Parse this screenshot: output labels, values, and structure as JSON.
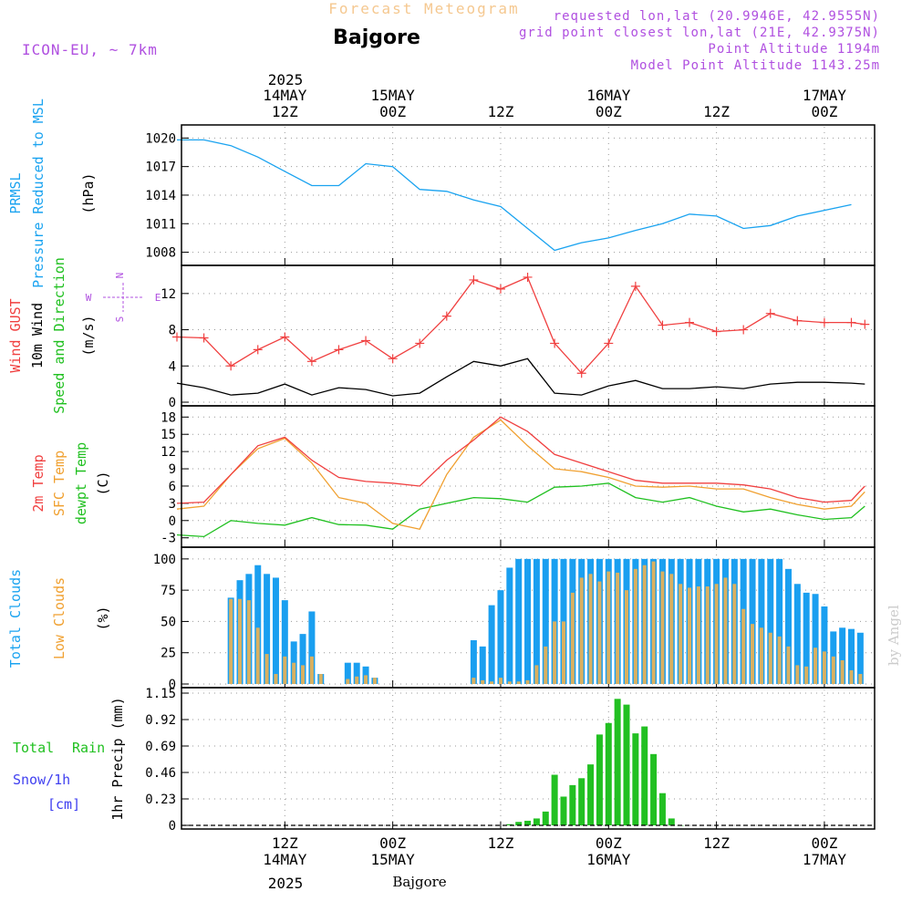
{
  "header": {
    "product": "Forecast Meteogram",
    "location": "Bajgore",
    "model": "ICON-EU, ~ 7km",
    "requested": "requested lon,lat (20.9946E, 42.9555N)",
    "gridpoint": "grid point closest lon,lat (21E, 42.9375N)",
    "point_alt": "Point Altitude 1194m",
    "model_alt": "Model Point Altitude 1143.25m",
    "footer_location": "Bajgore",
    "watermark": "by Angel",
    "year": "2025"
  },
  "time_axis": {
    "top_dates": [
      "14MAY",
      "15MAY",
      "16MAY",
      "17MAY"
    ],
    "top_hours": [
      "12Z",
      "00Z",
      "12Z",
      "00Z",
      "12Z",
      "00Z"
    ],
    "bottom_hours": [
      "12Z",
      "00Z",
      "12Z",
      "00Z",
      "12Z",
      "00Z"
    ],
    "bottom_dates": [
      "14MAY",
      "15MAY",
      "16MAY",
      "17MAY"
    ]
  },
  "panel_labels": {
    "pressure": [
      "PRMSL",
      "Pressure Reduced to MSL",
      "(hPa)"
    ],
    "wind": [
      "Wind GUST",
      "10m Wind",
      "Speed and Direction",
      "(m/s)"
    ],
    "compass": [
      "N",
      "S",
      "W",
      "E"
    ],
    "temp": [
      "2m Temp",
      "SFC Temp",
      "dewpt Temp",
      "(C)"
    ],
    "clouds": [
      "Total Clouds",
      "Low Clouds",
      "(%)"
    ],
    "precip": [
      "Total",
      "Rain",
      "Snow/1h",
      "[cm]",
      "1hr Precip (mm)"
    ]
  },
  "colors": {
    "pressure": "#1aa3f0",
    "gust": "#f04040",
    "wind": "#000000",
    "t2m": "#f04040",
    "sfc": "#f0a030",
    "dewpt": "#20c020",
    "total_clouds": "#1a9ff0",
    "low_clouds": "#d9b060",
    "rain": "#22c022",
    "header_orange": "#f5c890",
    "header_purple": "#b050e0",
    "label_cyan": "#1aa3f0",
    "label_green": "#20c020",
    "label_red": "#f04040",
    "label_orange": "#f0a030",
    "label_blue": "#4040f0"
  },
  "chart_data": [
    {
      "type": "line",
      "title": "PRMSL Pressure Reduced to MSL",
      "ylabel": "(hPa)",
      "x_hours_from_14MAY_00Z": [
        0,
        3,
        6,
        9,
        12,
        15,
        18,
        21,
        24,
        27,
        30,
        33,
        36,
        39,
        42,
        45,
        48,
        51,
        54,
        57,
        60,
        63,
        66,
        69,
        75
      ],
      "series": [
        {
          "name": "PRMSL",
          "values": [
            1019.8,
            1019.8,
            1019.2,
            1018.0,
            1016.5,
            1015.0,
            1015.0,
            1017.3,
            1017.0,
            1014.6,
            1014.4,
            1013.5,
            1012.8,
            1010.5,
            1008.2,
            1009.0,
            1009.5,
            1010.3,
            1011.0,
            1012.0,
            1011.8,
            1010.5,
            1010.8,
            1011.8,
            1013.0
          ]
        }
      ],
      "yticks": [
        1008,
        1011,
        1014,
        1017,
        1020
      ],
      "ylim": [
        1007,
        1020.8
      ]
    },
    {
      "type": "line",
      "title": "Wind GUST / 10m Wind Speed and Direction",
      "ylabel": "(m/s)",
      "x_hours_from_14MAY_00Z": [
        0,
        3,
        6,
        9,
        12,
        15,
        18,
        21,
        24,
        27,
        30,
        33,
        36,
        39,
        42,
        45,
        48,
        51,
        54,
        57,
        60,
        63,
        66,
        69,
        72,
        75,
        76.5
      ],
      "series": [
        {
          "name": "Wind GUST",
          "values": [
            7.2,
            7.1,
            4.0,
            5.8,
            7.2,
            4.5,
            5.8,
            6.8,
            4.8,
            6.5,
            9.5,
            13.5,
            12.5,
            13.8,
            6.5,
            3.2,
            6.5,
            12.8,
            8.5,
            8.8,
            7.8,
            8.0,
            9.8,
            9.0,
            8.8,
            8.8,
            8.6
          ]
        },
        {
          "name": "10m Wind",
          "values": [
            2.1,
            1.6,
            0.8,
            1.0,
            2.0,
            0.8,
            1.6,
            1.4,
            0.7,
            1.0,
            2.8,
            4.5,
            4.0,
            4.8,
            1.0,
            0.8,
            1.8,
            2.4,
            1.5,
            1.5,
            1.7,
            1.5,
            2.0,
            2.2,
            2.2,
            2.1,
            2.0
          ]
        }
      ],
      "yticks": [
        0,
        4,
        8,
        12
      ],
      "ylim": [
        0,
        14.5
      ]
    },
    {
      "type": "line",
      "title": "2m Temp / SFC Temp / dewpt Temp",
      "ylabel": "(C)",
      "x_hours_from_14MAY_00Z": [
        0,
        3,
        6,
        9,
        12,
        15,
        18,
        21,
        24,
        27,
        30,
        33,
        36,
        39,
        42,
        45,
        48,
        51,
        54,
        57,
        60,
        63,
        66,
        69,
        72,
        75,
        76.5
      ],
      "series": [
        {
          "name": "2m Temp",
          "values": [
            3.0,
            3.2,
            8.0,
            13.0,
            14.5,
            10.5,
            7.5,
            6.8,
            6.5,
            6.0,
            10.5,
            14.0,
            18.0,
            15.5,
            11.5,
            10.0,
            8.5,
            7.0,
            6.5,
            6.5,
            6.5,
            6.2,
            5.5,
            4.0,
            3.2,
            3.5,
            6.0
          ]
        },
        {
          "name": "SFC Temp",
          "values": [
            2.0,
            2.5,
            8.0,
            12.5,
            14.3,
            10.0,
            4.0,
            3.0,
            -0.5,
            -1.5,
            8.0,
            14.5,
            17.5,
            13.0,
            9.0,
            8.5,
            7.5,
            6.0,
            5.8,
            6.0,
            5.5,
            5.5,
            4.0,
            2.8,
            2.0,
            2.5,
            5.0
          ]
        },
        {
          "name": "dewpt Temp",
          "values": [
            -2.5,
            -2.8,
            0.0,
            -0.5,
            -0.8,
            0.5,
            -0.7,
            -0.8,
            -1.5,
            2.0,
            3.0,
            4.0,
            3.8,
            3.2,
            5.8,
            6.0,
            6.5,
            4.0,
            3.2,
            4.0,
            2.5,
            1.5,
            2.0,
            1.0,
            0.2,
            0.5,
            2.5
          ]
        }
      ],
      "yticks": [
        -3,
        0,
        3,
        6,
        9,
        12,
        15,
        18
      ],
      "ylim": [
        -4,
        19
      ]
    },
    {
      "type": "bar",
      "title": "Total Clouds / Low Clouds",
      "ylabel": "(%)",
      "x_hours_from_14MAY_00Z": [
        6,
        7,
        8,
        9,
        10,
        11,
        12,
        13,
        14,
        15,
        16,
        19,
        20,
        21,
        22,
        33,
        34,
        35,
        36,
        37,
        38,
        39,
        40,
        41,
        42,
        43,
        44,
        45,
        46,
        47,
        48,
        49,
        50,
        51,
        52,
        53,
        54,
        55,
        56,
        57,
        58,
        59,
        60,
        61,
        62,
        63,
        64,
        65,
        66,
        67,
        68,
        69,
        70,
        71,
        72,
        73,
        74,
        75,
        76
      ],
      "series": [
        {
          "name": "Total Clouds",
          "values": [
            69,
            83,
            88,
            95,
            88,
            85,
            67,
            34,
            40,
            58,
            8,
            17,
            17,
            14,
            5,
            35,
            30,
            63,
            75,
            93,
            100,
            100,
            100,
            100,
            100,
            100,
            100,
            100,
            100,
            100,
            100,
            100,
            100,
            100,
            100,
            100,
            100,
            100,
            100,
            100,
            100,
            100,
            100,
            100,
            100,
            100,
            100,
            100,
            100,
            100,
            92,
            80,
            73,
            72,
            62,
            42,
            45,
            44,
            41
          ]
        },
        {
          "name": "Low Clouds",
          "values": [
            68,
            68,
            67,
            45,
            24,
            8,
            22,
            17,
            15,
            22,
            8,
            4,
            6,
            7,
            5,
            5,
            3,
            2,
            5,
            2,
            2,
            3,
            15,
            30,
            50,
            50,
            73,
            85,
            88,
            82,
            90,
            89,
            75,
            92,
            95,
            98,
            90,
            88,
            80,
            77,
            78,
            78,
            80,
            85,
            80,
            60,
            48,
            45,
            41,
            38,
            30,
            15,
            14,
            29,
            26,
            22,
            19,
            11,
            8
          ]
        }
      ],
      "yticks": [
        0,
        25,
        50,
        75,
        100
      ],
      "ylim": [
        0,
        105
      ]
    },
    {
      "type": "bar",
      "title": "Total Rain / Snow/1h",
      "ylabel": "1hr Precip (mm)",
      "x_hours_from_14MAY_00Z": [
        37,
        38,
        39,
        40,
        41,
        42,
        43,
        44,
        45,
        46,
        47,
        48,
        49,
        50,
        51,
        52,
        53,
        54,
        55,
        56
      ],
      "series": [
        {
          "name": "Total Rain",
          "values": [
            0.01,
            0.03,
            0.04,
            0.06,
            0.12,
            0.44,
            0.25,
            0.35,
            0.41,
            0.53,
            0.79,
            0.89,
            1.1,
            1.05,
            0.8,
            0.86,
            0.62,
            0.28,
            0.06,
            0.0
          ]
        }
      ],
      "yticks": [
        0,
        0.23,
        0.46,
        0.69,
        0.92,
        1.15
      ],
      "ylim": [
        0,
        1.15
      ]
    }
  ]
}
